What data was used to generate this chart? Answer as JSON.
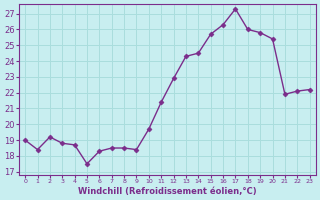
{
  "x": [
    0,
    1,
    2,
    3,
    4,
    5,
    6,
    7,
    8,
    9,
    10,
    11,
    12,
    13,
    14,
    15,
    16,
    17,
    18,
    19,
    20,
    21,
    22,
    23
  ],
  "y": [
    19.0,
    18.4,
    19.2,
    18.8,
    18.7,
    17.5,
    18.3,
    18.5,
    18.5,
    18.4,
    19.7,
    21.4,
    22.9,
    24.3,
    24.5,
    25.7,
    26.3,
    27.3,
    26.0,
    25.8,
    25.4,
    21.9,
    22.1,
    22.2
  ],
  "line_color": "#7b2d8b",
  "marker_color": "#7b2d8b",
  "bg_color": "#c8eef0",
  "grid_color": "#aadddd",
  "ylabel_ticks": [
    17,
    18,
    19,
    20,
    21,
    22,
    23,
    24,
    25,
    26,
    27
  ],
  "ylim": [
    16.8,
    27.6
  ],
  "xlim": [
    -0.5,
    23.5
  ],
  "xlabel": "Windchill (Refroidissement éolien,°C)",
  "xlabel_color": "#7b2d8b",
  "tick_color": "#7b2d8b"
}
